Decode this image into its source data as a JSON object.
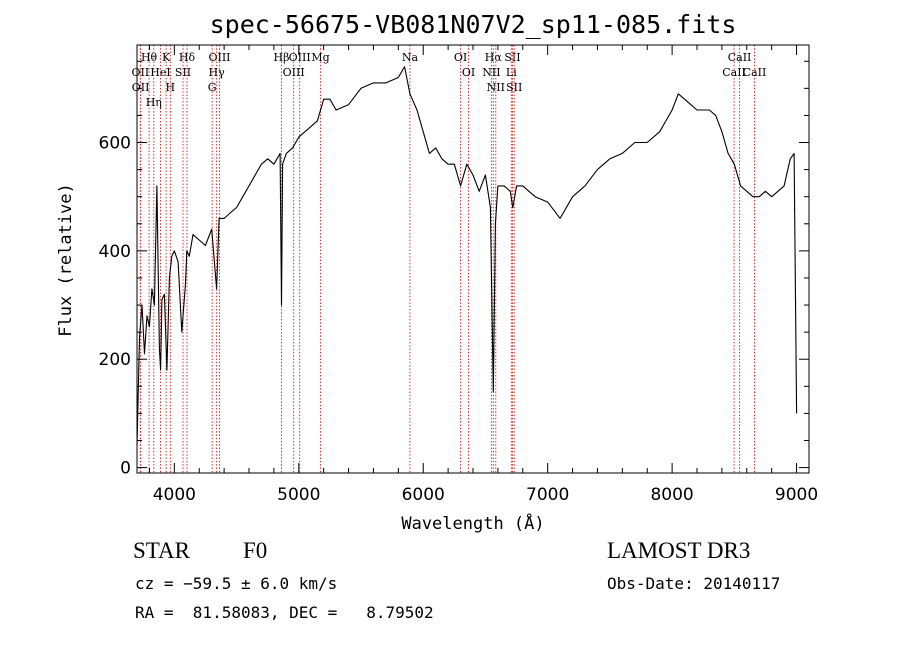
{
  "chart_data": {
    "type": "line",
    "title": "spec-56675-VB081N07V2_sp11-085.fits",
    "xlabel": "Wavelength (Å)",
    "ylabel": "Flux (relative)",
    "xlim": [
      3700,
      9100
    ],
    "ylim": [
      -10,
      780
    ],
    "xticks": [
      4000,
      5000,
      6000,
      7000,
      8000,
      9000
    ],
    "yticks": [
      0,
      200,
      400,
      600
    ],
    "series": [
      {
        "name": "flux",
        "x": [
          3700,
          3720,
          3740,
          3760,
          3780,
          3800,
          3820,
          3840,
          3860,
          3880,
          3890,
          3900,
          3920,
          3940,
          3960,
          3980,
          4000,
          4030,
          4060,
          4090,
          4100,
          4120,
          4150,
          4200,
          4250,
          4300,
          4340,
          4360,
          4400,
          4450,
          4500,
          4550,
          4600,
          4650,
          4700,
          4750,
          4800,
          4850,
          4861,
          4870,
          4900,
          4950,
          5000,
          5050,
          5100,
          5150,
          5200,
          5250,
          5300,
          5400,
          5500,
          5600,
          5700,
          5800,
          5850,
          5893,
          5950,
          6000,
          6050,
          6100,
          6150,
          6200,
          6250,
          6300,
          6350,
          6400,
          6450,
          6500,
          6540,
          6563,
          6580,
          6600,
          6650,
          6700,
          6720,
          6750,
          6800,
          6900,
          7000,
          7100,
          7200,
          7300,
          7400,
          7500,
          7600,
          7700,
          7800,
          7900,
          8000,
          8050,
          8100,
          8150,
          8200,
          8250,
          8300,
          8350,
          8400,
          8450,
          8500,
          8550,
          8600,
          8650,
          8700,
          8750,
          8800,
          8850,
          8900,
          8950,
          8980,
          9000
        ],
        "y": [
          40,
          240,
          300,
          210,
          280,
          260,
          330,
          300,
          520,
          220,
          180,
          310,
          320,
          180,
          350,
          390,
          400,
          380,
          250,
          340,
          400,
          390,
          430,
          420,
          410,
          440,
          330,
          460,
          460,
          470,
          480,
          500,
          520,
          540,
          560,
          570,
          560,
          580,
          300,
          560,
          580,
          590,
          610,
          620,
          630,
          640,
          680,
          680,
          660,
          670,
          700,
          710,
          710,
          720,
          740,
          690,
          660,
          620,
          580,
          590,
          570,
          560,
          560,
          520,
          560,
          540,
          510,
          540,
          480,
          140,
          450,
          520,
          520,
          510,
          480,
          520,
          520,
          500,
          490,
          460,
          500,
          520,
          550,
          570,
          580,
          600,
          600,
          620,
          660,
          690,
          680,
          670,
          660,
          660,
          660,
          650,
          620,
          580,
          560,
          520,
          510,
          500,
          500,
          510,
          500,
          510,
          520,
          570,
          580,
          100
        ]
      }
    ],
    "spectral_lines": [
      {
        "label": "Hθ",
        "x": 3797
      },
      {
        "label": "OII",
        "x": 3727
      },
      {
        "label": "OII",
        "x": 3729
      },
      {
        "label": "K",
        "x": 3934
      },
      {
        "label": "HeI",
        "x": 3889
      },
      {
        "label": "Hη",
        "x": 3835
      },
      {
        "label": "Hδ",
        "x": 4102
      },
      {
        "label": "SII",
        "x": 4070
      },
      {
        "label": "H",
        "x": 3968
      },
      {
        "label": "OIII",
        "x": 4363
      },
      {
        "label": "Hγ",
        "x": 4340
      },
      {
        "label": "G",
        "x": 4304
      },
      {
        "label": "OIII",
        "x": 5007
      },
      {
        "label": "OIII",
        "x": 4959
      },
      {
        "label": "Hβ",
        "x": 4861
      },
      {
        "label": "Mg",
        "x": 5175
      },
      {
        "label": "Na",
        "x": 5893
      },
      {
        "label": "OI",
        "x": 6300
      },
      {
        "label": "OI",
        "x": 6364
      },
      {
        "label": "Hα",
        "x": 6563
      },
      {
        "label": "SII",
        "x": 6717
      },
      {
        "label": "NII",
        "x": 6548
      },
      {
        "label": "Li",
        "x": 6708
      },
      {
        "label": "NII",
        "x": 6583
      },
      {
        "label": "SII",
        "x": 6731
      },
      {
        "label": "CaII",
        "x": 8542
      },
      {
        "label": "CaII",
        "x": 8498
      },
      {
        "label": "CaII",
        "x": 8662
      }
    ]
  },
  "info": {
    "class": "STAR",
    "subclass": "F0",
    "survey": "LAMOST DR3",
    "cz": "cz = −59.5 ± 6.0 km/s",
    "obs_date": "Obs-Date: 20140117",
    "radec": "RA =  81.58083, DEC =   8.79502"
  }
}
